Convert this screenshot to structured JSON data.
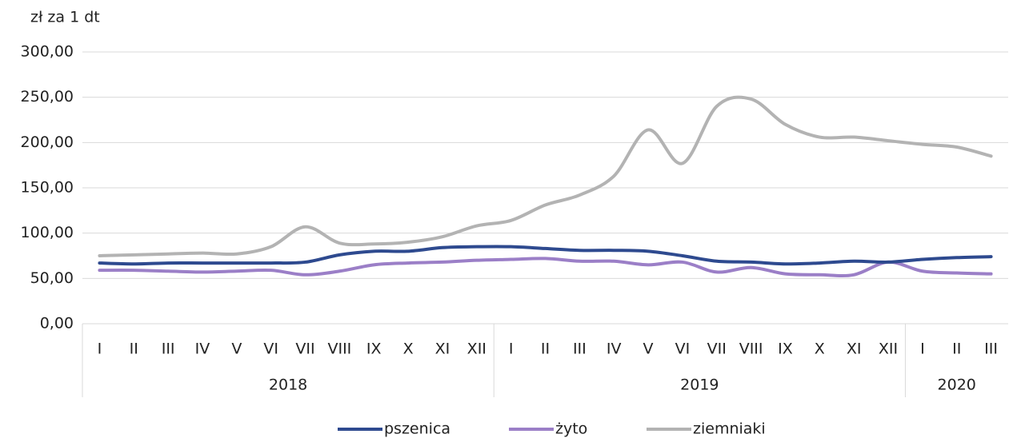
{
  "chart_data": {
    "type": "line",
    "y_label": "zł za 1 dt",
    "groups": [
      {
        "label": "2018",
        "categories": [
          "I",
          "II",
          "III",
          "IV",
          "V",
          "VI",
          "VII",
          "VIII",
          "IX",
          "X",
          "XI",
          "XII"
        ]
      },
      {
        "label": "2019",
        "categories": [
          "I",
          "II",
          "III",
          "IV",
          "V",
          "VI",
          "VII",
          "VIII",
          "IX",
          "X",
          "XI",
          "XII"
        ]
      },
      {
        "label": "2020",
        "categories": [
          "I",
          "II",
          "III"
        ]
      }
    ],
    "series": [
      {
        "name": "pszenica",
        "color": "#2e4a8f",
        "values": [
          67,
          66,
          67,
          67,
          67,
          67,
          68,
          76,
          80,
          80,
          84,
          85,
          85,
          83,
          81,
          81,
          80,
          75,
          69,
          68,
          66,
          67,
          69,
          68,
          71,
          73,
          74
        ]
      },
      {
        "name": "żyto",
        "color": "#9b7fc7",
        "values": [
          59,
          59,
          58,
          57,
          58,
          59,
          54,
          58,
          65,
          67,
          68,
          70,
          71,
          72,
          69,
          69,
          65,
          68,
          57,
          62,
          55,
          54,
          54,
          68,
          58,
          56,
          55
        ]
      },
      {
        "name": "ziemniaki",
        "color": "#b3b3b3",
        "values": [
          75,
          76,
          77,
          78,
          77,
          85,
          107,
          89,
          88,
          90,
          96,
          108,
          114,
          131,
          142,
          163,
          214,
          177,
          240,
          248,
          220,
          206,
          206,
          202,
          198,
          195,
          185
        ]
      }
    ],
    "ylim": [
      0,
      300
    ],
    "yticks": [
      {
        "value": 0,
        "label": "0,00"
      },
      {
        "value": 50,
        "label": "50,00"
      },
      {
        "value": 100,
        "label": "100,00"
      },
      {
        "value": 150,
        "label": "150,00"
      },
      {
        "value": 200,
        "label": "200,00"
      },
      {
        "value": 250,
        "label": "250,00"
      },
      {
        "value": 300,
        "label": "300,00"
      }
    ],
    "grid": true,
    "legend": "bottom"
  }
}
